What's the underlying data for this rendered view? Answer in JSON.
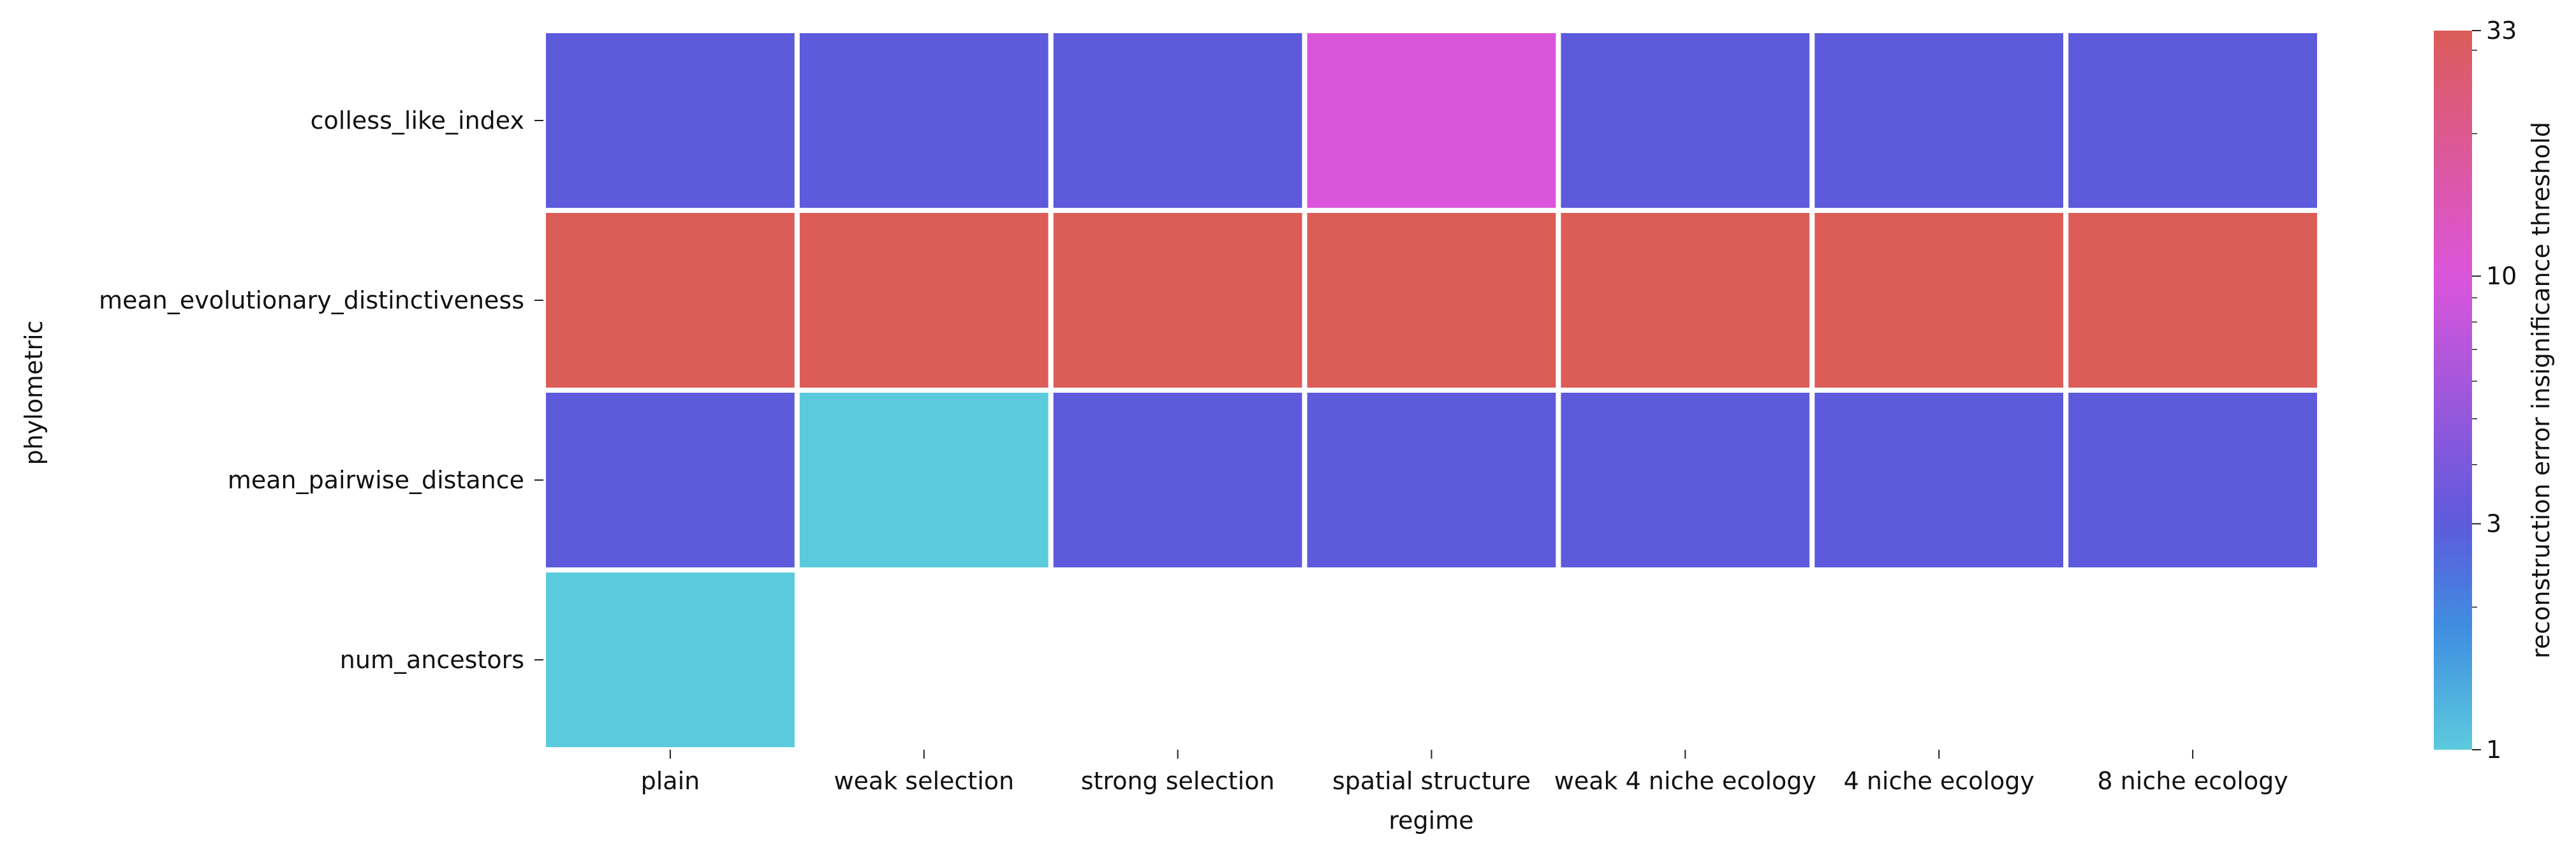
{
  "chart_data": {
    "type": "heatmap",
    "title": "",
    "xlabel": "regime",
    "ylabel": "phylometric",
    "x_categories": [
      "plain",
      "weak selection",
      "strong selection",
      "spatial structure",
      "weak 4 niche ecology",
      "4 niche ecology",
      "8 niche ecology"
    ],
    "y_categories": [
      "colless_like_index",
      "mean_evolutionary_distinctiveness",
      "mean_pairwise_distance",
      "num_ancestors"
    ],
    "values": [
      [
        3,
        3,
        3,
        10,
        3,
        3,
        3
      ],
      [
        33,
        33,
        33,
        33,
        33,
        33,
        33
      ],
      [
        3,
        1,
        3,
        3,
        3,
        3,
        3
      ],
      [
        1,
        null,
        null,
        null,
        null,
        null,
        null
      ]
    ],
    "colorbar": {
      "label": "reconstruction error insignificance threshold",
      "scale": "log",
      "range": [
        1,
        33
      ],
      "ticks": [
        1,
        3,
        10,
        33
      ],
      "tick_labels": [
        "1",
        "3",
        "10",
        "33"
      ],
      "minor_ticks": [
        2,
        4,
        5,
        6,
        7,
        8,
        9,
        20,
        30
      ],
      "colormap": [
        {
          "v": 1,
          "color": "#5ccadd"
        },
        {
          "v": 1.8,
          "color": "#3f8ee0"
        },
        {
          "v": 3,
          "color": "#5d5adc"
        },
        {
          "v": 10,
          "color": "#db55db"
        },
        {
          "v": 33,
          "color": "#dc5c58"
        }
      ]
    },
    "grid": false,
    "missing_cells": "blank"
  }
}
